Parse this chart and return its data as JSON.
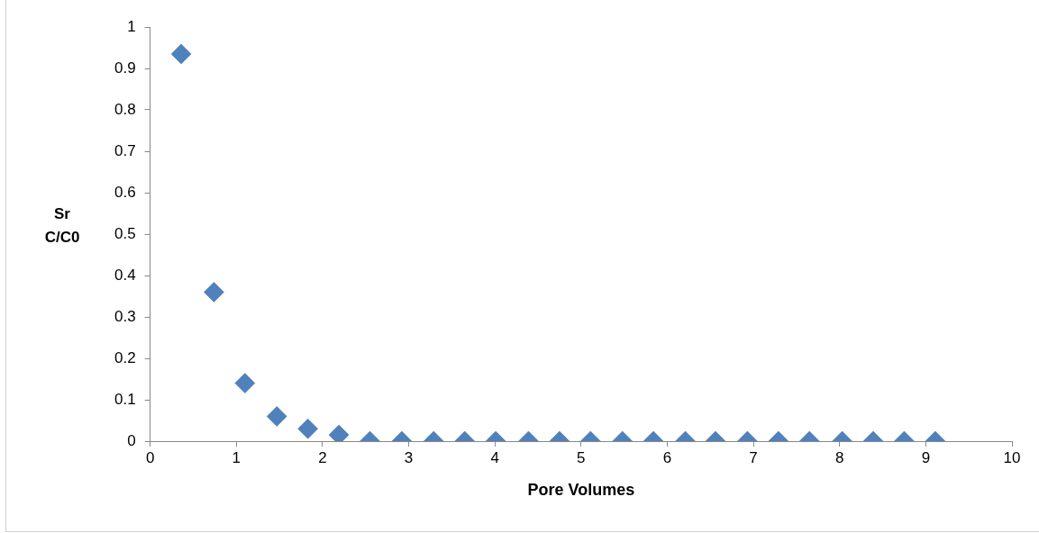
{
  "chart_data": {
    "type": "scatter",
    "xlabel": "Pore Volumes",
    "ylabel": "Sr\nC/C0",
    "x": [
      0.36,
      0.74,
      1.1,
      1.47,
      1.83,
      2.19,
      2.55,
      2.92,
      3.29,
      3.65,
      4.01,
      4.39,
      4.75,
      5.11,
      5.48,
      5.84,
      6.21,
      6.56,
      6.93,
      7.29,
      7.65,
      8.03,
      8.39,
      8.75,
      9.11
    ],
    "series": [
      {
        "color": "#4f81bd",
        "values": [
          0.935,
          0.36,
          0.14,
          0.06,
          0.03,
          0.015,
          0,
          0,
          0,
          0,
          0,
          0,
          0,
          0,
          0,
          0,
          0,
          0,
          0,
          0,
          0,
          0,
          0,
          0,
          0
        ]
      }
    ],
    "xlim": [
      0,
      10
    ],
    "xticks": [
      0,
      1,
      2,
      3,
      4,
      5,
      6,
      7,
      8,
      9,
      10
    ],
    "ylim": [
      0,
      1
    ],
    "yticks": [
      0,
      0.1,
      0.2,
      0.3,
      0.4,
      0.5,
      0.6,
      0.7,
      0.8,
      0.9,
      1
    ],
    "grid": false,
    "legend": false,
    "marker": "diamond"
  }
}
